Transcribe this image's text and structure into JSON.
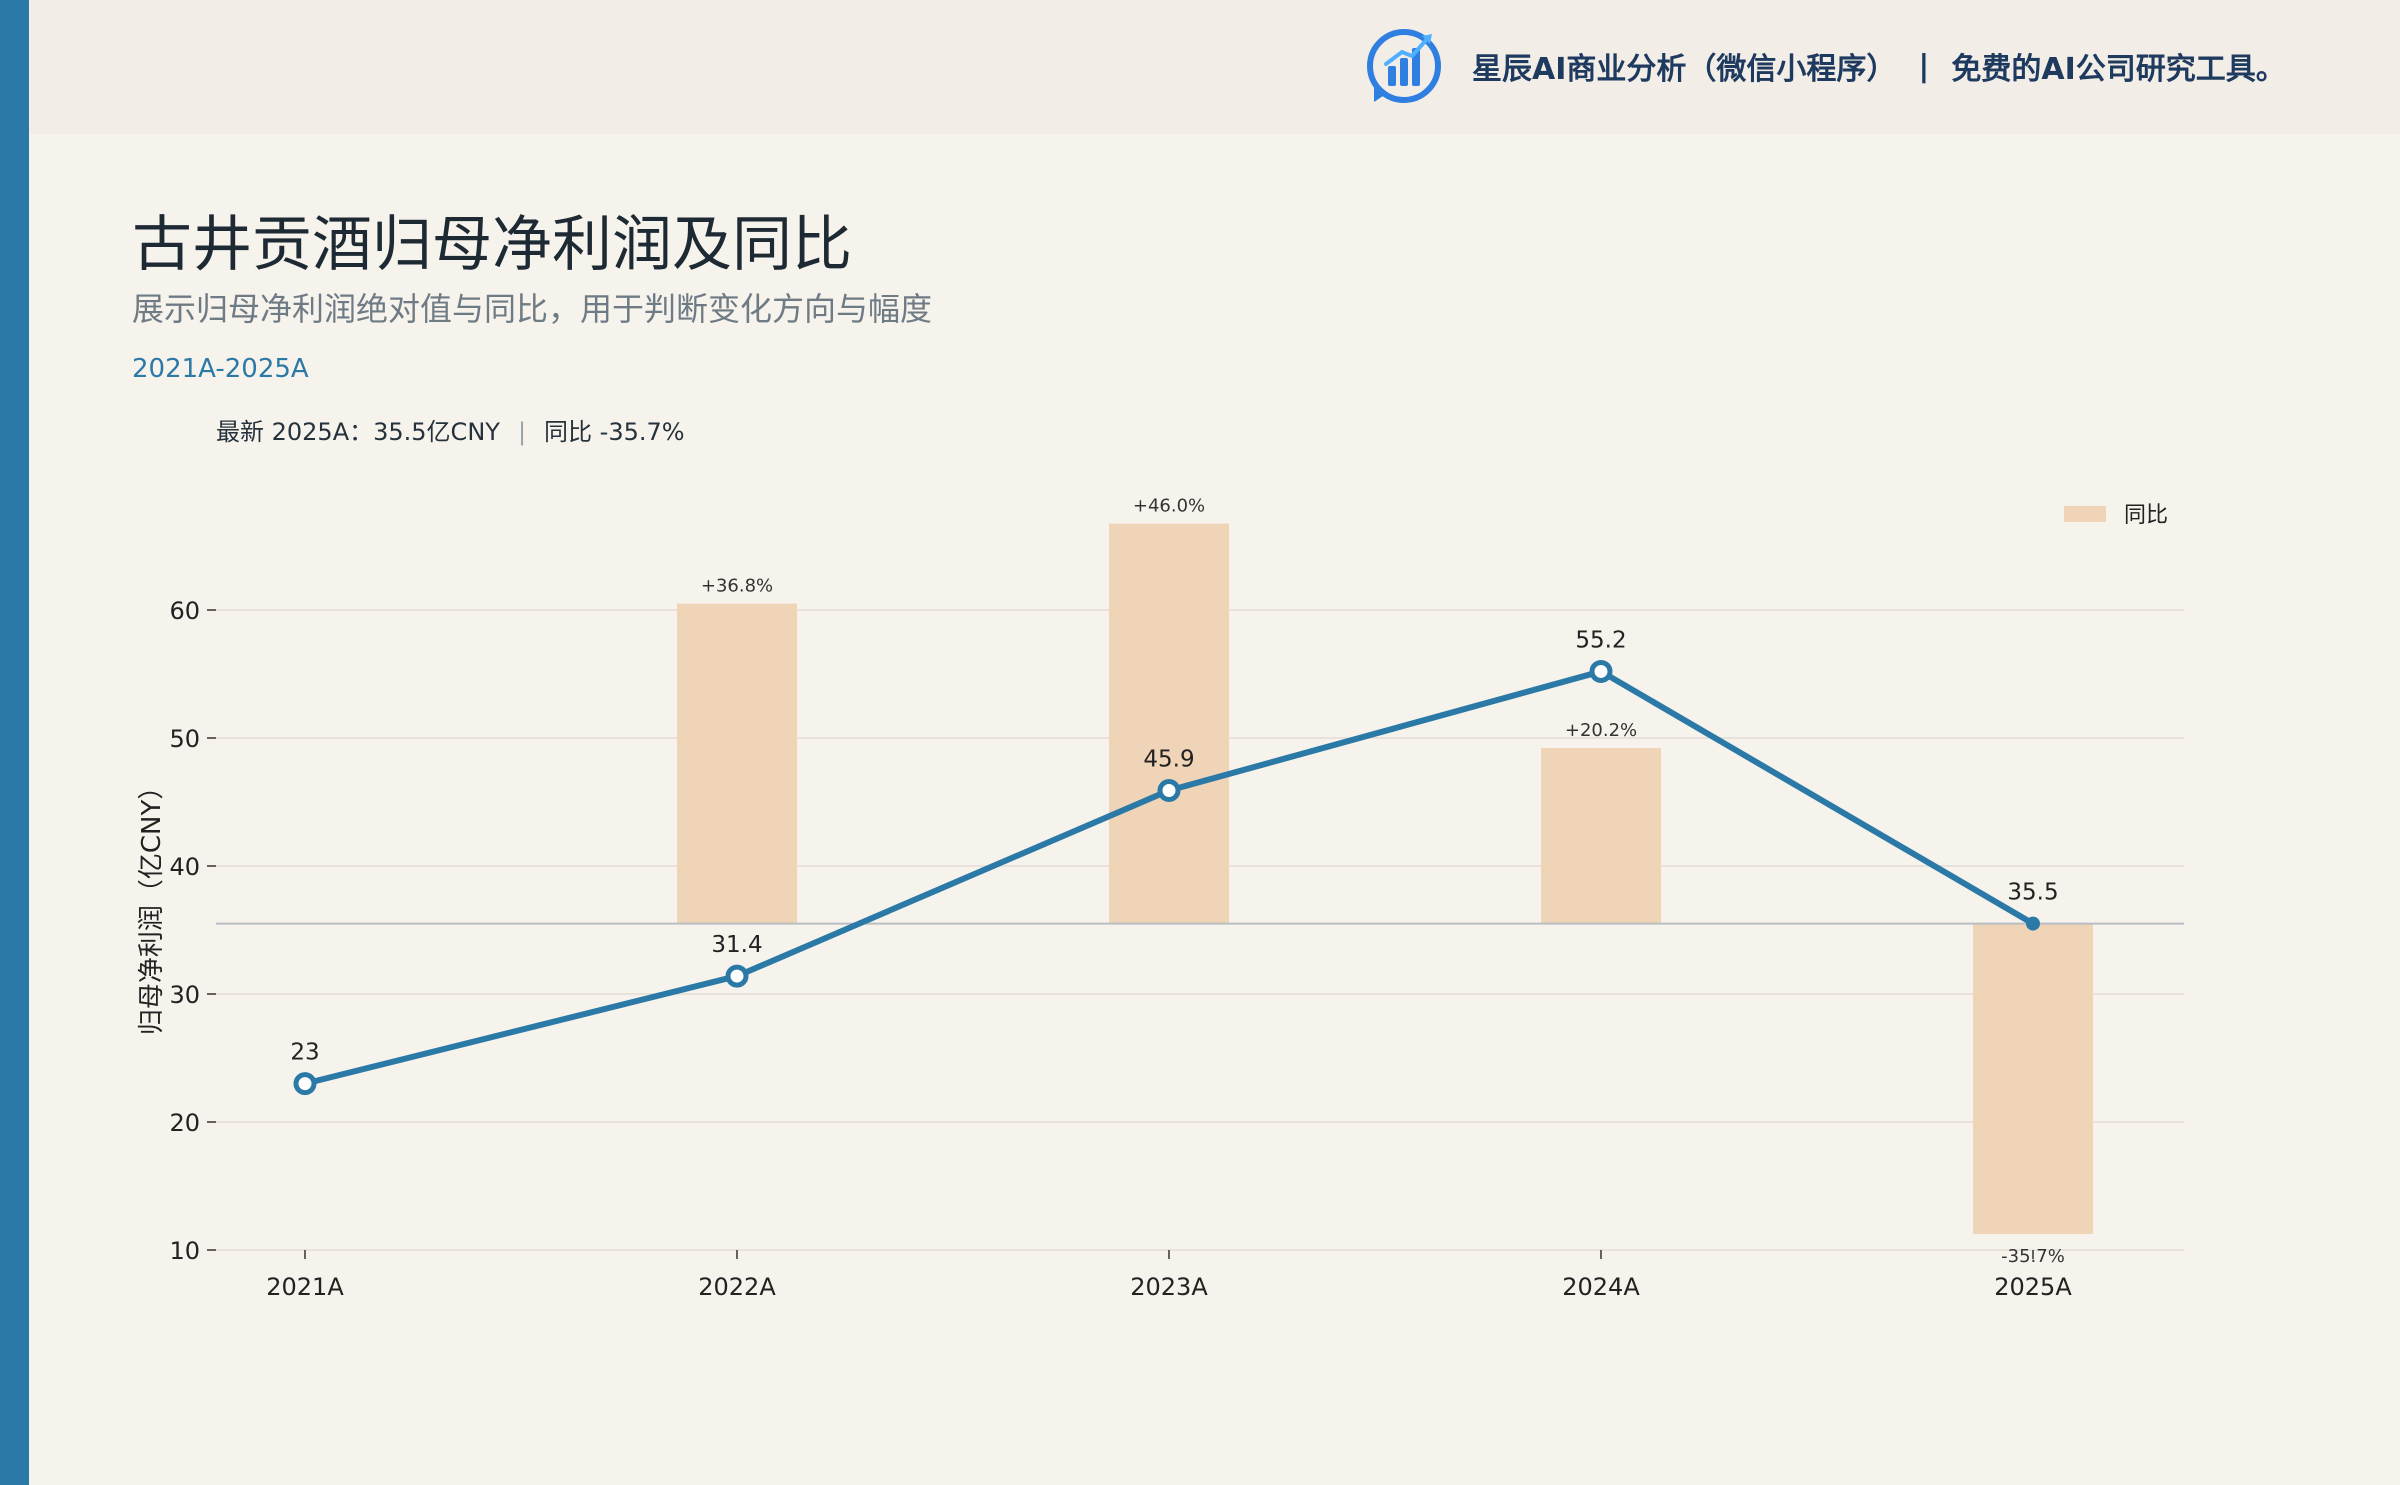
{
  "header": {
    "brand_name": "星辰AI商业分析（微信小程序）",
    "separator": "|",
    "tagline": "免费的AI公司研究工具。",
    "logo_icon": "bar-chart-logo-icon"
  },
  "title": "古井贡酒归母净利润及同比",
  "subtitle": "展示归母净利润绝对值与同比，用于判断变化方向与幅度",
  "period": "2021A-2025A",
  "latest": {
    "label": "最新 2025A：35.5亿CNY",
    "separator": "|",
    "yoy": "同比 -35.7%"
  },
  "colors": {
    "accent": "#2b79a6",
    "bar": "#efd4b8",
    "background": "#f6f3ed",
    "topbar": "#f2eee7"
  },
  "chart_data": {
    "type": "line",
    "categories": [
      "2021A",
      "2022A",
      "2023A",
      "2024A",
      "2025A"
    ],
    "series": [
      {
        "values": [
          23,
          31.4,
          45.9,
          55.2,
          35.5
        ],
        "labels": [
          "23",
          "31.4",
          "45.9",
          "55.2",
          "35.5"
        ]
      }
    ],
    "overlay": {
      "type": "bar",
      "name": "同比",
      "values": [
        null,
        36.8,
        46.0,
        20.2,
        -35.7
      ],
      "labels": [
        "",
        "+36.8%",
        "+46.0%",
        "+20.2%",
        "-35.7%"
      ]
    },
    "ylabel": "归母净利润（亿CNY）",
    "ylim": [
      10,
      65
    ],
    "yticks": [
      10,
      20,
      30,
      40,
      50,
      60
    ],
    "baseline": 35.5,
    "legend": "top-right",
    "grid": true
  }
}
